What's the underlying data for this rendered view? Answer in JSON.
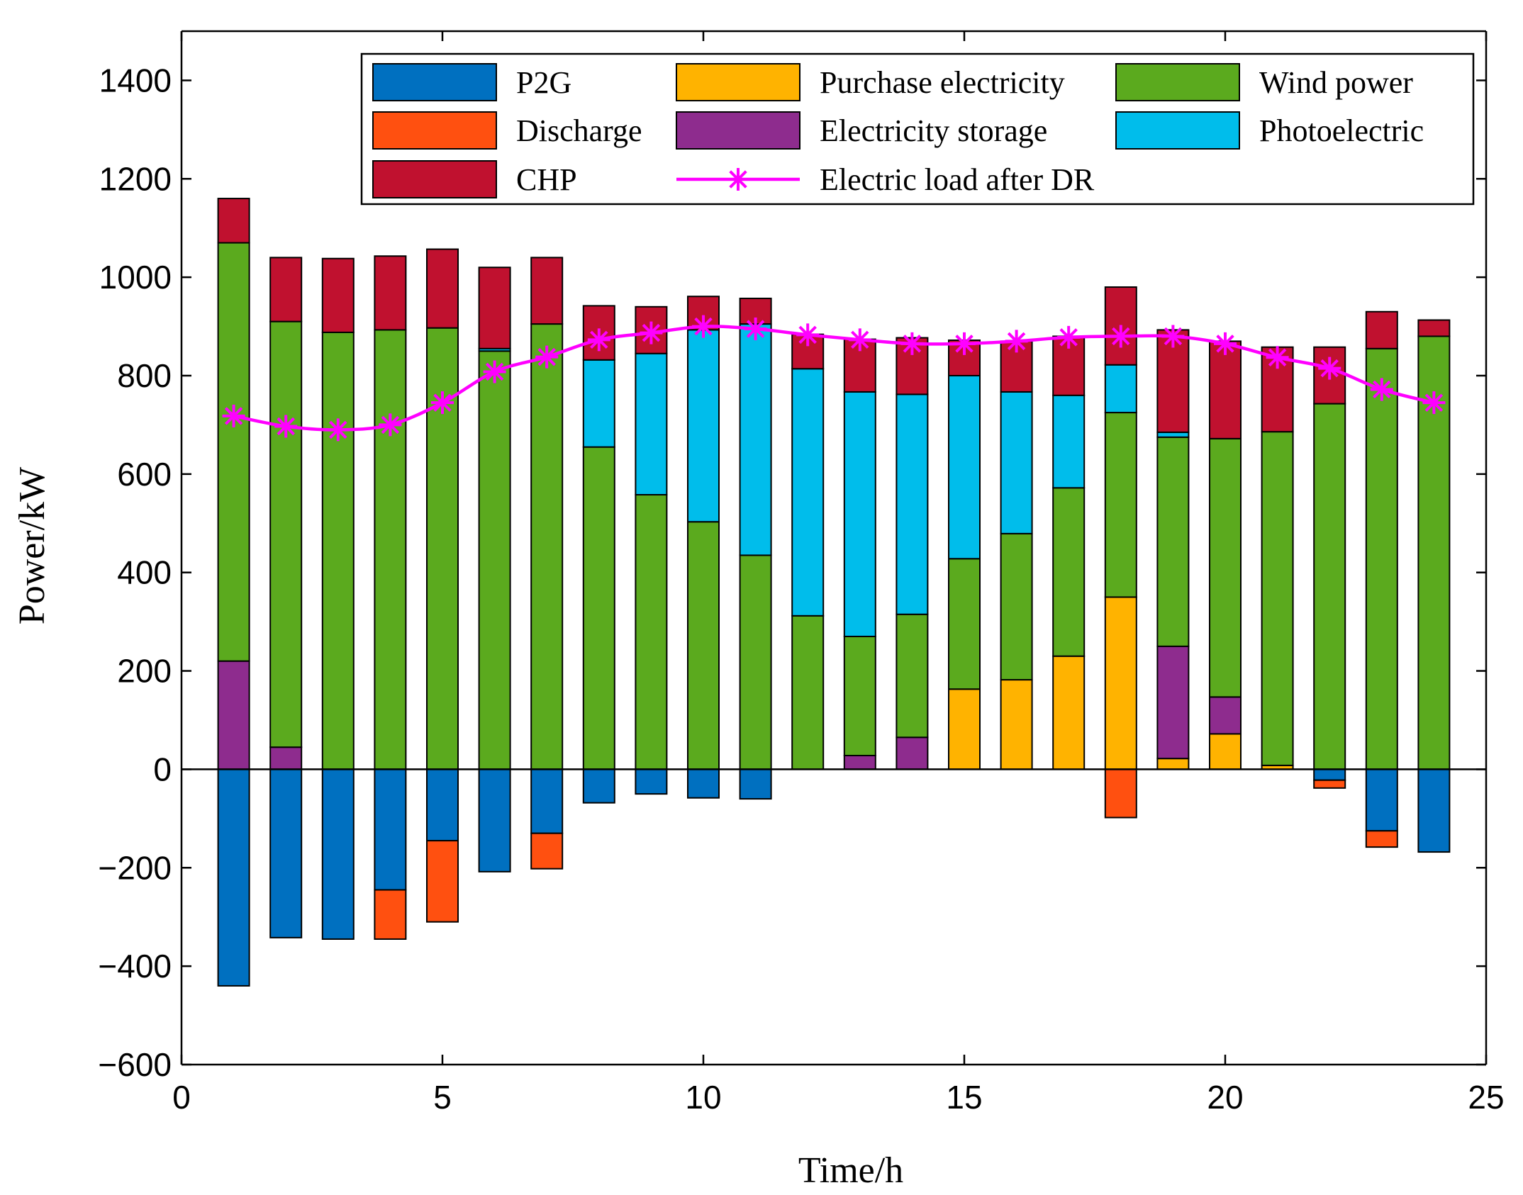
{
  "chart_data": {
    "type": "bar",
    "subtype": "stacked",
    "title": "",
    "xlabel": "Time/h",
    "ylabel": "Power/kW",
    "xlim": [
      0,
      25
    ],
    "ylim": [
      -600,
      1500
    ],
    "xticks": [
      0,
      5,
      10,
      15,
      20,
      25
    ],
    "yticks": [
      -600,
      -400,
      -200,
      0,
      200,
      400,
      600,
      800,
      1000,
      1200,
      1400
    ],
    "x": [
      1,
      2,
      3,
      4,
      5,
      6,
      7,
      8,
      9,
      10,
      11,
      12,
      13,
      14,
      15,
      16,
      17,
      18,
      19,
      20,
      21,
      22,
      23,
      24
    ],
    "positive_series": [
      {
        "name": "Purchase electricity",
        "color": "#FFB300",
        "values": [
          0,
          0,
          0,
          0,
          0,
          0,
          0,
          0,
          0,
          0,
          0,
          0,
          0,
          0,
          163,
          182,
          230,
          350,
          22,
          72,
          8,
          0,
          0,
          0
        ]
      },
      {
        "name": "Electricity storage",
        "color": "#8E2C8E",
        "values": [
          220,
          45,
          0,
          0,
          0,
          0,
          0,
          0,
          0,
          0,
          0,
          0,
          28,
          65,
          0,
          0,
          0,
          0,
          228,
          75,
          0,
          0,
          0,
          0
        ]
      },
      {
        "name": "Wind power",
        "color": "#5BAA1E",
        "values": [
          850,
          865,
          888,
          893,
          897,
          850,
          905,
          655,
          558,
          503,
          435,
          312,
          242,
          250,
          265,
          297,
          342,
          375,
          425,
          525,
          678,
          743,
          855,
          880
        ]
      },
      {
        "name": "Photoelectric",
        "color": "#00BDEB",
        "values": [
          0,
          0,
          0,
          0,
          0,
          5,
          0,
          177,
          287,
          390,
          470,
          502,
          497,
          447,
          372,
          288,
          188,
          97,
          10,
          0,
          0,
          0,
          0,
          0
        ]
      },
      {
        "name": "CHP",
        "color": "#C0112F",
        "values": [
          90,
          130,
          150,
          150,
          160,
          165,
          135,
          110,
          95,
          68,
          52,
          70,
          107,
          115,
          72,
          103,
          120,
          158,
          208,
          198,
          172,
          115,
          75,
          33
        ]
      }
    ],
    "negative_series": [
      {
        "name": "P2G",
        "color": "#0070C0",
        "values": [
          -440,
          -342,
          -345,
          -245,
          -145,
          -208,
          -130,
          -68,
          -50,
          -58,
          -60,
          0,
          0,
          0,
          0,
          0,
          0,
          0,
          0,
          0,
          0,
          -22,
          -125,
          -168
        ]
      },
      {
        "name": "Discharge",
        "color": "#FF5010",
        "values": [
          0,
          0,
          0,
          -100,
          -165,
          0,
          -72,
          0,
          0,
          0,
          0,
          0,
          0,
          0,
          0,
          0,
          0,
          -98,
          0,
          0,
          0,
          -16,
          -33,
          0
        ]
      }
    ],
    "line_series": {
      "name": "Electric load after DR",
      "color": "#FF00FF",
      "values": [
        718,
        697,
        690,
        700,
        745,
        808,
        838,
        873,
        887,
        900,
        895,
        883,
        873,
        865,
        865,
        870,
        878,
        880,
        880,
        865,
        837,
        815,
        772,
        745
      ]
    },
    "legend": {
      "position": "top-right",
      "entries": [
        "P2G",
        "Purchase electricity",
        "Wind power",
        "Discharge",
        "Electricity storage",
        "Photoelectric",
        "CHP",
        "Electric load after DR"
      ]
    }
  }
}
